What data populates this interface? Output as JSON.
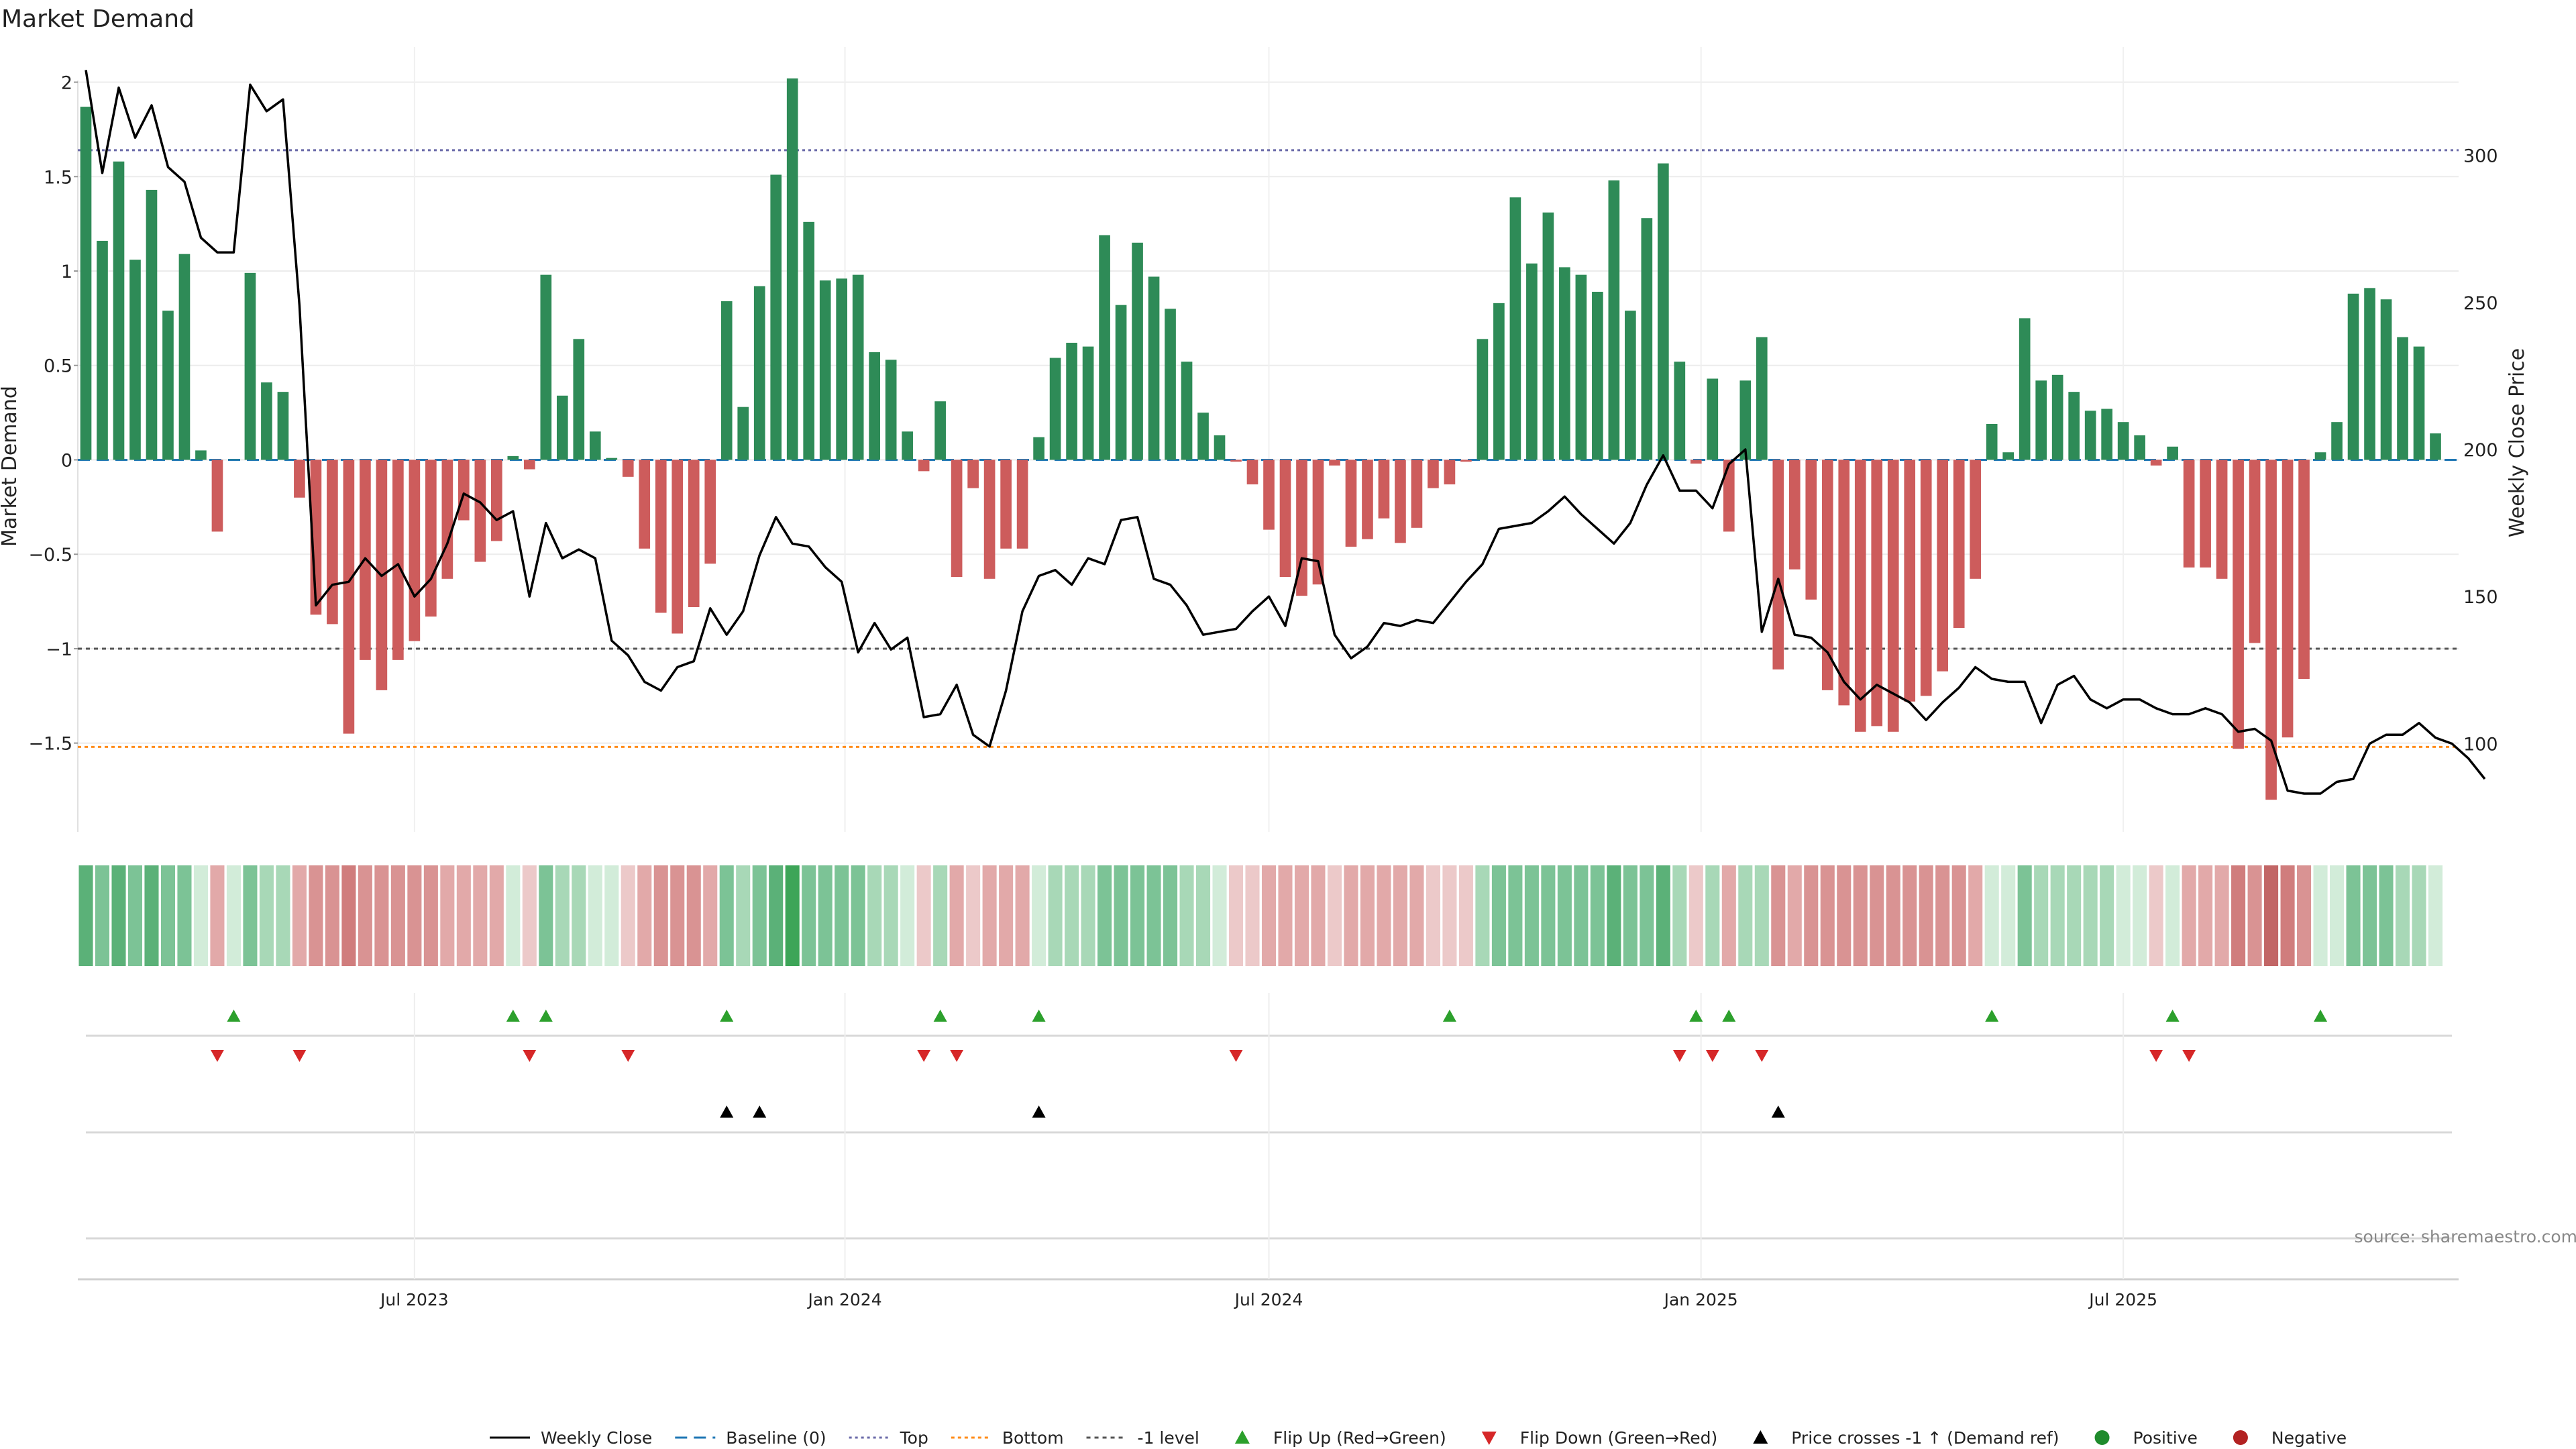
{
  "title": "Market Demand",
  "source": "source: sharemaestro.com",
  "colors": {
    "positive": "#2e8b57",
    "negative": "#cd5c5c",
    "price": "#000000",
    "baseline": "#1f77b4",
    "top": "#6a6aa8",
    "bottom": "#ff8c1a",
    "minus1": "#555555",
    "flip_up": "#2ca02c",
    "flip_down": "#d62728",
    "cross": "#000000",
    "positive_dot": "#1f8b2c",
    "negative_dot": "#b22222"
  },
  "chart_data": {
    "type": "bar",
    "title": "Market Demand",
    "ylabel": "Market Demand",
    "y2label": "Weekly Close Price",
    "ylim": [
      -1.97,
      2.08
    ],
    "yticks": [
      2,
      1.5,
      1,
      0.5,
      0,
      -0.5,
      -1,
      -1.5
    ],
    "ytick_labels": [
      "2",
      "1.5",
      "1",
      "0.5",
      "0",
      "−0.5",
      "−1",
      "−1.5"
    ],
    "y2lim": [
      70,
      330
    ],
    "y2ticks": [
      100,
      150,
      200,
      250,
      300
    ],
    "y2tick_labels": [
      "100",
      "150",
      "200",
      "250",
      "300"
    ],
    "top_level": 1.64,
    "bottom_level": -1.52,
    "minus1_level": -1.0,
    "x_index_range": [
      0,
      144
    ],
    "xtick_positions": [
      20,
      46.2,
      72,
      98.3,
      124
    ],
    "xtick_labels": [
      "Jul 2023",
      "Jan 2024",
      "Jul 2024",
      "Jan 2025",
      "Jul 2025"
    ],
    "series": [
      {
        "name": "Market Demand",
        "values": [
          1.87,
          1.16,
          1.58,
          1.06,
          1.43,
          0.79,
          1.09,
          0.05,
          -0.38,
          0.0,
          0.99,
          0.41,
          0.36,
          -0.2,
          -0.82,
          -0.87,
          -1.45,
          -1.06,
          -1.22,
          -1.06,
          -0.96,
          -0.83,
          -0.63,
          -0.32,
          -0.54,
          -0.43,
          0.02,
          -0.05,
          0.98,
          0.34,
          0.64,
          0.15,
          0.01,
          -0.09,
          -0.47,
          -0.81,
          -0.92,
          -0.78,
          -0.55,
          0.84,
          0.28,
          0.92,
          1.51,
          2.02,
          1.26,
          0.95,
          0.96,
          0.98,
          0.57,
          0.53,
          0.15,
          -0.06,
          0.31,
          -0.62,
          -0.15,
          -0.63,
          -0.47,
          -0.47,
          0.12,
          0.54,
          0.62,
          0.6,
          1.19,
          0.82,
          1.15,
          0.97,
          0.8,
          0.52,
          0.25,
          0.13,
          -0.01,
          -0.13,
          -0.37,
          -0.62,
          -0.72,
          -0.66,
          -0.03,
          -0.46,
          -0.42,
          -0.31,
          -0.44,
          -0.36,
          -0.15,
          -0.13,
          -0.01,
          0.64,
          0.83,
          1.39,
          1.04,
          1.31,
          1.02,
          0.98,
          0.89,
          1.48,
          0.79,
          1.28,
          1.57,
          0.52,
          -0.02,
          0.43,
          -0.38,
          0.42,
          0.65,
          -1.11,
          -0.58,
          -0.74,
          -1.22,
          -1.3,
          -1.44,
          -1.41,
          -1.44,
          -1.28,
          -1.25,
          -1.12,
          -0.89,
          -0.63,
          0.19,
          0.04,
          0.75,
          0.42,
          0.45,
          0.36,
          0.26,
          0.27,
          0.2,
          0.13,
          -0.03,
          0.07,
          -0.57,
          -0.57,
          -0.63,
          -1.53,
          -0.97,
          -1.8,
          -1.47,
          -1.16,
          0.04,
          0.2,
          0.88,
          0.91,
          0.85,
          0.65,
          0.6,
          0.14
        ]
      },
      {
        "name": "Weekly Close",
        "values": [
          329,
          294,
          323,
          306,
          317,
          296,
          291,
          272,
          267,
          267,
          324,
          315,
          319,
          249,
          147,
          154,
          155,
          163,
          157,
          161,
          150,
          156,
          168,
          185,
          182,
          176,
          179,
          150,
          175,
          163,
          166,
          163,
          135,
          130,
          121,
          118,
          126,
          128,
          146,
          137,
          145,
          164,
          177,
          168,
          167,
          160,
          155,
          131,
          141,
          132,
          136,
          109,
          110,
          120,
          103,
          99,
          118,
          145,
          157,
          159,
          154,
          163,
          161,
          176,
          177,
          156,
          154,
          147,
          137,
          138,
          139,
          145,
          150,
          140,
          163,
          162,
          137,
          129,
          133,
          141,
          140,
          142,
          141,
          148,
          155,
          161,
          173,
          174,
          175,
          179,
          184,
          178,
          173,
          168,
          175,
          188,
          198,
          186,
          186,
          180,
          195,
          200,
          138,
          156,
          137,
          136,
          131,
          121,
          115,
          120,
          117,
          114,
          108,
          114,
          119,
          126,
          122,
          121,
          121,
          107,
          120,
          123,
          115,
          112,
          115,
          115,
          112,
          110,
          110,
          112,
          110,
          104,
          105,
          101,
          84,
          83,
          83,
          87,
          88,
          100,
          103,
          103,
          107,
          102,
          100,
          95,
          88
        ]
      }
    ],
    "heat_intensity": [
      3,
      2,
      3,
      2,
      3,
      2,
      2,
      0,
      1,
      0,
      2,
      1,
      1,
      1,
      2,
      2,
      3,
      2,
      2,
      2,
      2,
      2,
      1,
      1,
      1,
      1,
      0,
      0,
      2,
      1,
      1,
      0,
      0,
      0,
      1,
      2,
      2,
      2,
      1,
      2,
      1,
      2,
      3,
      4,
      2,
      2,
      2,
      2,
      1,
      1,
      0,
      0,
      1,
      1,
      0,
      1,
      1,
      1,
      0,
      1,
      1,
      1,
      2,
      2,
      2,
      2,
      2,
      1,
      1,
      0,
      0,
      0,
      1,
      1,
      1,
      1,
      0,
      1,
      1,
      1,
      1,
      1,
      0,
      0,
      0,
      1,
      2,
      2,
      2,
      2,
      2,
      2,
      2,
      3,
      2,
      2,
      3,
      1,
      0,
      1,
      1,
      1,
      1,
      2,
      1,
      2,
      2,
      2,
      2,
      2,
      2,
      2,
      2,
      2,
      2,
      1,
      0,
      0,
      2,
      1,
      1,
      1,
      1,
      1,
      0,
      0,
      0,
      0,
      1,
      1,
      1,
      3,
      2,
      4,
      3,
      2,
      0,
      0,
      2,
      2,
      2,
      1,
      1,
      0
    ],
    "flip_up_index": [
      9,
      26,
      28,
      39,
      52,
      58,
      83,
      98,
      100,
      116,
      127,
      136
    ],
    "flip_down_index": [
      8,
      13,
      27,
      33,
      51,
      53,
      70,
      97,
      99,
      102,
      126,
      128
    ],
    "price_cross_index": [
      39,
      41,
      58,
      103
    ],
    "legend": [
      {
        "label": "Weekly Close",
        "kind": "line"
      },
      {
        "label": "Baseline (0)",
        "kind": "dash-blue"
      },
      {
        "label": "Top",
        "kind": "dot-purple"
      },
      {
        "label": "Bottom",
        "kind": "dot-orange"
      },
      {
        "label": "-1 level",
        "kind": "dash-gray"
      },
      {
        "label": "Flip Up (Red→Green)",
        "kind": "tri-up-green"
      },
      {
        "label": "Flip Down (Green→Red)",
        "kind": "tri-down-red"
      },
      {
        "label": "Price crosses -1 ↑ (Demand ref)",
        "kind": "tri-up-black"
      },
      {
        "label": "Positive",
        "kind": "dot-green"
      },
      {
        "label": "Negative",
        "kind": "dot-red"
      }
    ]
  }
}
